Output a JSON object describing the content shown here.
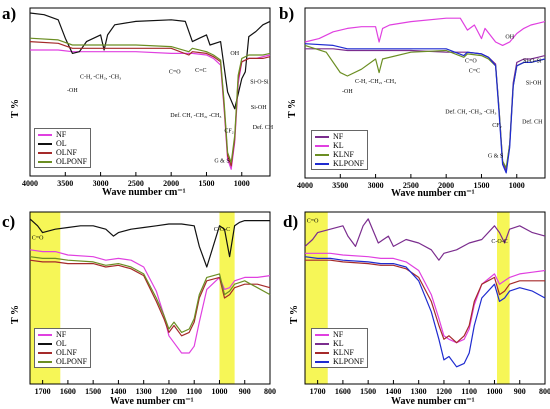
{
  "colors": {
    "black": "#111111",
    "purple": "#7b2d8e",
    "red": "#a52a2a",
    "green": "#6b8e23",
    "blue": "#1f2bd0",
    "magenta": "#e040e0",
    "highlight": "#f4f43a"
  },
  "chart_data": [
    {
      "panel_label": "a)",
      "type": "line",
      "xlabel": "Wave number cm⁻¹",
      "ylabel": "T %",
      "xlim": [
        4000,
        600
      ],
      "ylim": [
        0,
        100
      ],
      "reversed_x": true,
      "xticks": [
        4000,
        3500,
        3000,
        2500,
        2000,
        1500,
        1000
      ],
      "legend": [
        "NF",
        "OL",
        "OLNF",
        "OLPONF"
      ],
      "legend_position": "bottom-left",
      "annotations": [
        "-OH",
        "C-H, -CH₂, -CH₃",
        "C=O",
        "C=C",
        "OH",
        "Def. CH, -CH₂, -CH₃",
        "Si-O-Si",
        "Def. CH",
        "Si-OH",
        "CF₂",
        "G & S"
      ],
      "series": [
        {
          "name": "NF",
          "color": "#e040e0",
          "x": [
            4000,
            3600,
            3400,
            3000,
            2500,
            2000,
            1700,
            1500,
            1400,
            1300,
            1250,
            1200,
            1150,
            1100,
            1050,
            1000,
            900,
            800,
            700,
            600
          ],
          "y": [
            75,
            75,
            74,
            74,
            74,
            73,
            73,
            72,
            70,
            66,
            40,
            10,
            4,
            20,
            55,
            68,
            70,
            70,
            71,
            72
          ]
        },
        {
          "name": "OL",
          "color": "#111111",
          "x": [
            4000,
            3800,
            3600,
            3500,
            3400,
            3300,
            3200,
            3000,
            2950,
            2900,
            2800,
            2500,
            2000,
            1800,
            1700,
            1600,
            1500,
            1450,
            1300,
            1200,
            1100,
            1000,
            950,
            900,
            800,
            700,
            600
          ],
          "y": [
            97,
            96,
            93,
            82,
            73,
            74,
            80,
            84,
            75,
            84,
            90,
            92,
            93,
            92,
            80,
            82,
            84,
            78,
            80,
            50,
            40,
            58,
            62,
            83,
            86,
            90,
            92
          ]
        },
        {
          "name": "OLNF",
          "color": "#a52a2a",
          "x": [
            4000,
            3600,
            3400,
            3000,
            2500,
            2000,
            1750,
            1700,
            1500,
            1400,
            1300,
            1250,
            1200,
            1150,
            1100,
            1050,
            1000,
            900,
            800,
            700,
            600
          ],
          "y": [
            80,
            79,
            76,
            76,
            76,
            76,
            72,
            74,
            73,
            71,
            68,
            42,
            12,
            6,
            22,
            58,
            68,
            70,
            70,
            70,
            71
          ]
        },
        {
          "name": "OLPONF",
          "color": "#6b8e23",
          "x": [
            4000,
            3600,
            3400,
            3000,
            2500,
            2000,
            1750,
            1700,
            1500,
            1400,
            1300,
            1250,
            1200,
            1150,
            1100,
            1050,
            1000,
            900,
            800,
            700,
            600
          ],
          "y": [
            82,
            81,
            78,
            78,
            78,
            77,
            74,
            76,
            74,
            72,
            69,
            44,
            14,
            8,
            24,
            60,
            70,
            72,
            72,
            72,
            73
          ]
        }
      ]
    },
    {
      "panel_label": "b)",
      "type": "line",
      "xlabel": "Wave number cm⁻¹",
      "ylabel": "T %",
      "xlim": [
        4000,
        600
      ],
      "ylim": [
        0,
        100
      ],
      "reversed_x": true,
      "xticks": [
        4000,
        3500,
        3000,
        2500,
        2000,
        1500,
        1000
      ],
      "legend": [
        "NF",
        "KL",
        "KLNF",
        "KLPONF"
      ],
      "legend_position": "bottom-left",
      "annotations": [
        "-OH",
        "C-H, -CH₂, -CH₃",
        "C=O",
        "C=C",
        "OH",
        "Def. CH, -CH₂, -CH₃",
        "Si-O-Si",
        "Def. CH",
        "Si-OH",
        "CF₂",
        "G & S"
      ],
      "series": [
        {
          "name": "NF",
          "color": "#7b2d8e",
          "x": [
            4000,
            3600,
            3400,
            3000,
            2500,
            2000,
            1700,
            1500,
            1400,
            1300,
            1250,
            1200,
            1150,
            1100,
            1050,
            1000,
            900,
            800,
            700,
            600
          ],
          "y": [
            76,
            76,
            75,
            75,
            75,
            74,
            74,
            73,
            71,
            67,
            40,
            10,
            4,
            20,
            56,
            68,
            70,
            70,
            71,
            72
          ]
        },
        {
          "name": "KL",
          "color": "#e040e0",
          "x": [
            4000,
            3800,
            3600,
            3400,
            3200,
            3000,
            2950,
            2900,
            2800,
            2500,
            2000,
            1800,
            1700,
            1600,
            1500,
            1450,
            1300,
            1200,
            1100,
            1000,
            900,
            800,
            700,
            600
          ],
          "y": [
            80,
            82,
            86,
            88,
            89,
            89,
            80,
            88,
            90,
            92,
            94,
            94,
            87,
            90,
            82,
            88,
            80,
            78,
            80,
            85,
            88,
            90,
            91,
            92
          ]
        },
        {
          "name": "KLNF",
          "color": "#6b8e23",
          "x": [
            4000,
            3700,
            3500,
            3400,
            3200,
            3000,
            2950,
            2900,
            2500,
            2000,
            1750,
            1700,
            1500,
            1400,
            1300,
            1250,
            1200,
            1150,
            1100,
            1050,
            1000,
            900,
            800,
            700,
            600
          ],
          "y": [
            78,
            74,
            62,
            60,
            64,
            70,
            62,
            70,
            74,
            75,
            71,
            73,
            72,
            70,
            66,
            40,
            10,
            6,
            20,
            54,
            66,
            68,
            68,
            69,
            70
          ]
        },
        {
          "name": "KLPONF",
          "color": "#1f2bd0",
          "x": [
            4000,
            3600,
            3400,
            3000,
            2500,
            2000,
            1750,
            1700,
            1500,
            1400,
            1300,
            1250,
            1200,
            1150,
            1100,
            1050,
            1000,
            900,
            800,
            700,
            600
          ],
          "y": [
            79,
            78,
            76,
            76,
            76,
            76,
            72,
            74,
            73,
            71,
            66,
            38,
            8,
            3,
            18,
            54,
            66,
            68,
            68,
            69,
            70
          ]
        }
      ]
    },
    {
      "panel_label": "c)",
      "type": "line",
      "xlabel": "Wave number cm⁻¹",
      "ylabel": "T %",
      "xlim": [
        1750,
        800
      ],
      "ylim": [
        0,
        100
      ],
      "reversed_x": true,
      "xticks": [
        1700,
        1600,
        1500,
        1400,
        1300,
        1200,
        1100,
        1000,
        900,
        800
      ],
      "highlight_bands": [
        [
          1750,
          1630
        ],
        [
          1000,
          940
        ]
      ],
      "legend": [
        "NF",
        "OL",
        "OLNF",
        "OLPONF"
      ],
      "legend_position": "bottom-left",
      "annotations": [
        "C=O",
        "C-O-C"
      ],
      "series": [
        {
          "name": "NF",
          "color": "#e040e0",
          "x": [
            1750,
            1700,
            1650,
            1600,
            1500,
            1450,
            1400,
            1350,
            1300,
            1250,
            1220,
            1200,
            1180,
            1150,
            1120,
            1100,
            1080,
            1050,
            1000,
            980,
            960,
            940,
            900,
            850,
            800
          ],
          "y": [
            78,
            77,
            77,
            75,
            74,
            72,
            73,
            72,
            68,
            54,
            40,
            28,
            24,
            18,
            18,
            22,
            36,
            55,
            62,
            55,
            56,
            60,
            62,
            62,
            63
          ]
        },
        {
          "name": "OL",
          "color": "#111111",
          "x": [
            1750,
            1720,
            1700,
            1650,
            1600,
            1550,
            1500,
            1450,
            1420,
            1400,
            1350,
            1300,
            1250,
            1200,
            1150,
            1100,
            1080,
            1050,
            1000,
            980,
            960,
            940,
            920,
            900,
            850,
            800
          ],
          "y": [
            96,
            92,
            88,
            90,
            91,
            92,
            92,
            90,
            86,
            88,
            90,
            91,
            92,
            93,
            93,
            92,
            80,
            68,
            92,
            90,
            74,
            92,
            94,
            95,
            95,
            95
          ],
          "note": "dip near 960"
        },
        {
          "name": "OLNF",
          "color": "#a52a2a",
          "x": [
            1750,
            1700,
            1650,
            1600,
            1500,
            1450,
            1400,
            1350,
            1300,
            1250,
            1220,
            1200,
            1180,
            1150,
            1120,
            1100,
            1080,
            1050,
            1000,
            980,
            960,
            940,
            900,
            850,
            800
          ],
          "y": [
            72,
            71,
            71,
            70,
            70,
            68,
            69,
            67,
            63,
            48,
            38,
            30,
            34,
            28,
            30,
            36,
            50,
            60,
            62,
            50,
            52,
            56,
            58,
            58,
            56
          ]
        },
        {
          "name": "OLPONF",
          "color": "#6b8e23",
          "x": [
            1750,
            1700,
            1650,
            1600,
            1500,
            1450,
            1400,
            1350,
            1300,
            1250,
            1220,
            1200,
            1180,
            1150,
            1120,
            1100,
            1080,
            1050,
            1000,
            980,
            960,
            940,
            900,
            850,
            800
          ],
          "y": [
            74,
            73,
            73,
            72,
            71,
            69,
            70,
            68,
            64,
            50,
            40,
            32,
            36,
            30,
            32,
            38,
            52,
            62,
            64,
            52,
            54,
            58,
            60,
            56,
            52
          ]
        }
      ]
    },
    {
      "panel_label": "d)",
      "type": "line",
      "xlabel": "Wave number cm⁻¹",
      "ylabel": "T %",
      "xlim": [
        1750,
        800
      ],
      "ylim": [
        0,
        100
      ],
      "reversed_x": true,
      "xticks": [
        1700,
        1600,
        1500,
        1400,
        1300,
        1200,
        1100,
        1000,
        900,
        800
      ],
      "highlight_bands": [
        [
          1750,
          1660
        ],
        [
          990,
          940
        ]
      ],
      "legend": [
        "NF",
        "KL",
        "KLNF",
        "KLPONF"
      ],
      "legend_position": "bottom-left",
      "annotations": [
        "C=O",
        "C-O-C"
      ],
      "series": [
        {
          "name": "NF",
          "color": "#e040e0",
          "x": [
            1750,
            1700,
            1650,
            1600,
            1500,
            1450,
            1400,
            1350,
            1300,
            1250,
            1220,
            1200,
            1180,
            1150,
            1120,
            1100,
            1080,
            1050,
            1000,
            980,
            960,
            940,
            900,
            850,
            800
          ],
          "y": [
            76,
            76,
            76,
            75,
            74,
            73,
            73,
            71,
            66,
            52,
            38,
            28,
            26,
            24,
            26,
            32,
            46,
            58,
            64,
            58,
            60,
            62,
            64,
            65,
            66
          ]
        },
        {
          "name": "KL",
          "color": "#7b2d8e",
          "x": [
            1750,
            1720,
            1700,
            1650,
            1600,
            1580,
            1550,
            1520,
            1500,
            1460,
            1420,
            1400,
            1350,
            1300,
            1250,
            1220,
            1200,
            1150,
            1100,
            1050,
            1000,
            980,
            960,
            940,
            900,
            850,
            800
          ],
          "y": [
            80,
            84,
            88,
            90,
            92,
            86,
            80,
            92,
            96,
            82,
            86,
            80,
            84,
            82,
            78,
            72,
            76,
            78,
            82,
            84,
            92,
            88,
            82,
            90,
            92,
            88,
            86
          ]
        },
        {
          "name": "KLNF",
          "color": "#a52a2a",
          "x": [
            1750,
            1700,
            1650,
            1600,
            1500,
            1450,
            1400,
            1350,
            1300,
            1250,
            1220,
            1200,
            1180,
            1150,
            1120,
            1100,
            1080,
            1050,
            1000,
            980,
            960,
            940,
            900,
            850,
            800
          ],
          "y": [
            72,
            72,
            72,
            71,
            70,
            69,
            69,
            67,
            62,
            48,
            34,
            26,
            28,
            24,
            28,
            34,
            48,
            58,
            62,
            52,
            54,
            58,
            60,
            60,
            60
          ]
        },
        {
          "name": "KLPONF",
          "color": "#1f2bd0",
          "x": [
            1750,
            1700,
            1650,
            1600,
            1500,
            1450,
            1400,
            1350,
            1300,
            1250,
            1220,
            1200,
            1180,
            1150,
            1120,
            1100,
            1080,
            1050,
            1000,
            980,
            960,
            940,
            900,
            850,
            800
          ],
          "y": [
            74,
            73,
            73,
            72,
            71,
            70,
            70,
            68,
            60,
            42,
            26,
            14,
            16,
            10,
            12,
            18,
            34,
            50,
            58,
            48,
            50,
            54,
            56,
            54,
            50
          ]
        }
      ]
    }
  ]
}
